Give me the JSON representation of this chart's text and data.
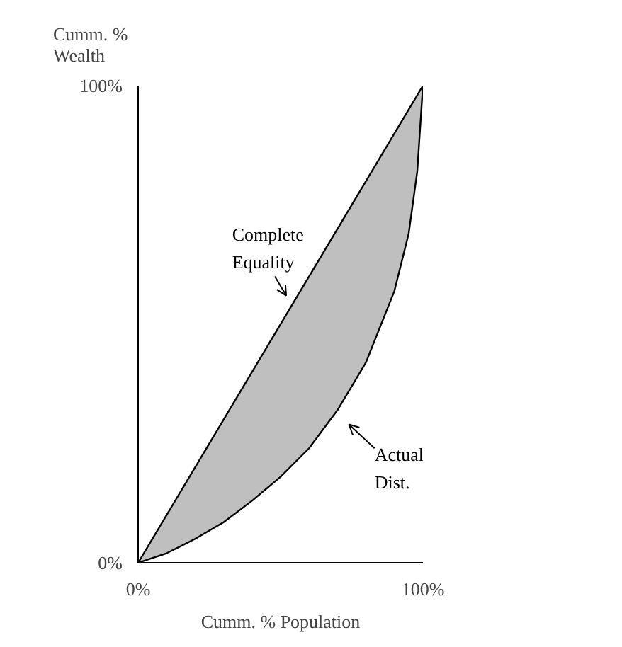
{
  "chart_data": {
    "type": "line",
    "xlabel": "Cumm. % Population",
    "ylabel": "Cumm. %\nWealth",
    "xlim": [
      0,
      100
    ],
    "ylim": [
      0,
      100
    ],
    "xticks": [
      {
        "value": 0,
        "label": "0%"
      },
      {
        "value": 100,
        "label": "100%"
      }
    ],
    "yticks": [
      {
        "value": 0,
        "label": "0%"
      },
      {
        "value": 100,
        "label": "100%"
      }
    ],
    "marker": "none",
    "line_style": "solid",
    "series": [
      {
        "name": "Complete\nEquality",
        "color": "#000000",
        "x": [
          0,
          100
        ],
        "values": [
          0,
          100
        ]
      },
      {
        "name": "Actual\nDist.",
        "color": "#000000",
        "x": [
          0,
          10,
          20,
          30,
          40,
          50,
          60,
          70,
          80,
          90,
          95,
          98,
          100
        ],
        "values": [
          0,
          2,
          5,
          8.5,
          13,
          18,
          24,
          32,
          42,
          57,
          69,
          82,
          100
        ],
        "lower": [
          0,
          2,
          5,
          8.5,
          13,
          18,
          24,
          32,
          42,
          57,
          69,
          82,
          100
        ],
        "upper": [
          0,
          10,
          20,
          30,
          40,
          50,
          60,
          70,
          80,
          90,
          95,
          98,
          100
        ]
      }
    ]
  }
}
